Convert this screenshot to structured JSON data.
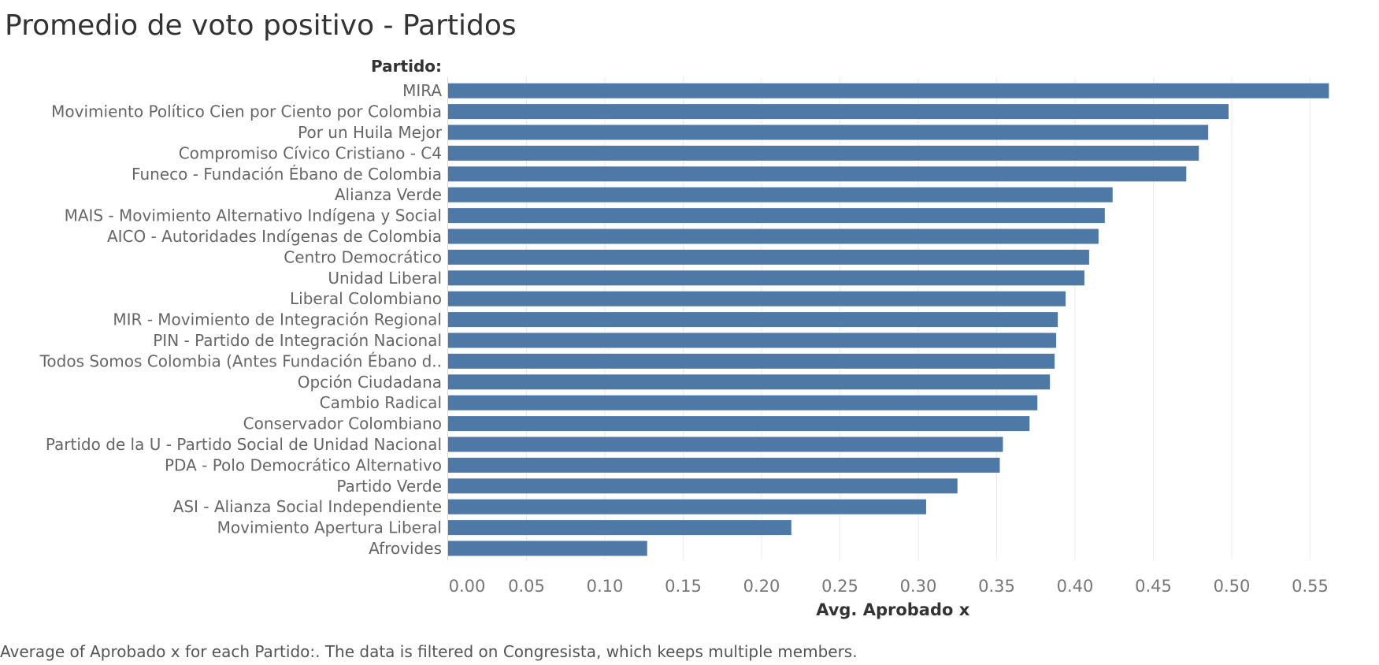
{
  "title": "Promedio de voto positivo - Partidos",
  "footnote": "Average of Aprobado x for each Partido:. The data is filtered on Congresista, which keeps multiple members.",
  "chart_data": {
    "type": "bar",
    "orientation": "horizontal",
    "row_header": "Partido:",
    "xlabel": "Avg. Aprobado x",
    "xlim": [
      0,
      0.56
    ],
    "xticks": [
      "0.00",
      "0.05",
      "0.10",
      "0.15",
      "0.20",
      "0.25",
      "0.30",
      "0.35",
      "0.40",
      "0.45",
      "0.50",
      "0.55"
    ],
    "grid": "vertical",
    "bar_color": "#4e79a7",
    "categories": [
      "MIRA",
      "Movimiento Político Cien por Ciento por Colombia",
      "Por un Huila Mejor",
      "Compromiso Cívico Cristiano - C4",
      "Funeco - Fundación Ébano de Colombia",
      "Alianza Verde",
      "MAIS - Movimiento Alternativo Indígena y Social",
      "AICO - Autoridades Indígenas de Colombia",
      "Centro Democrático",
      "Unidad Liberal",
      "Liberal Colombiano",
      "MIR - Movimiento de Integración Regional",
      "PIN - Partido de Integración Nacional",
      "Todos Somos Colombia (Antes Fundación Ébano d..",
      "Opción Ciudadana",
      "Cambio Radical",
      "Conservador Colombiano",
      "Partido de la U - Partido Social de Unidad Nacional",
      "PDA - Polo Democrático Alternativo",
      "Partido Verde",
      "ASI - Alianza Social Independiente",
      "Movimiento Apertura Liberal",
      "Afrovides"
    ],
    "values": [
      0.562,
      0.498,
      0.485,
      0.479,
      0.471,
      0.424,
      0.419,
      0.415,
      0.409,
      0.406,
      0.394,
      0.389,
      0.388,
      0.387,
      0.384,
      0.376,
      0.371,
      0.354,
      0.352,
      0.325,
      0.305,
      0.219,
      0.127
    ]
  }
}
